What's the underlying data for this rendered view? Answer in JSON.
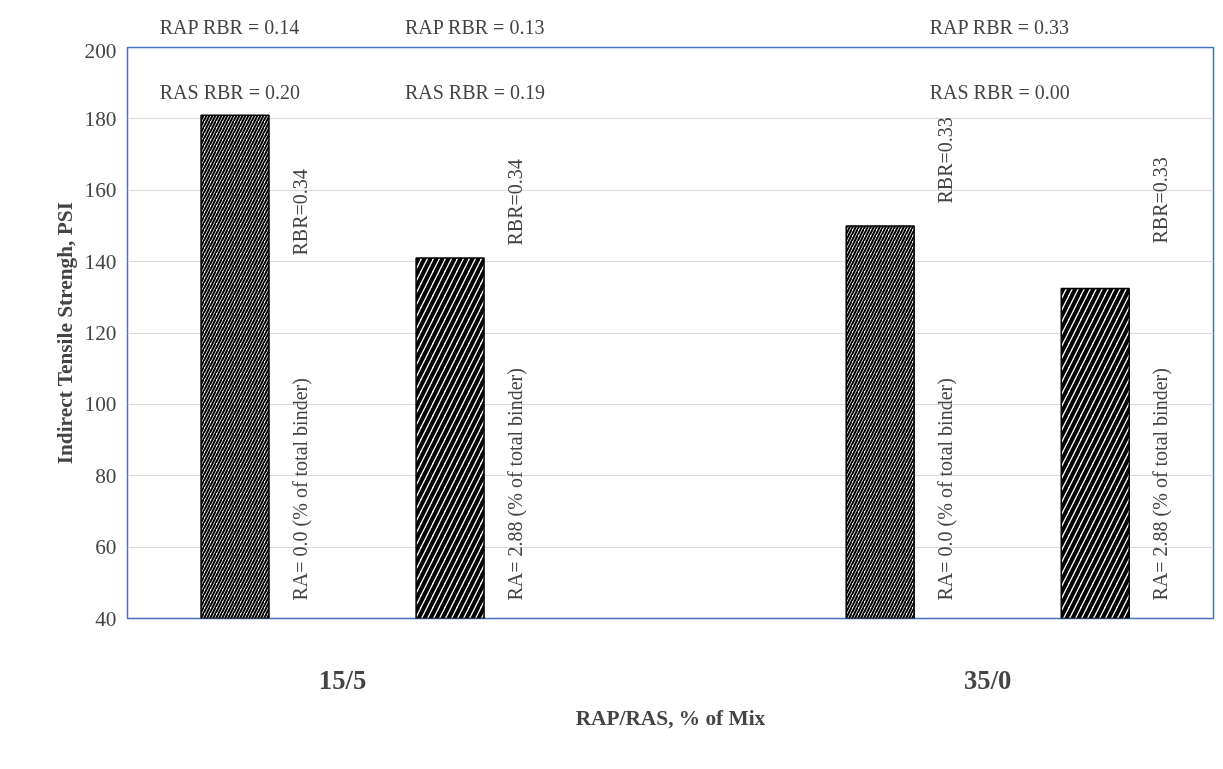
{
  "chart_data": {
    "type": "bar",
    "xlabel": "RAP/RAS, % of Mix",
    "ylabel": "Indirect Tensile Strengh, PSI",
    "categories": [
      null,
      null,
      null,
      null
    ],
    "values": [
      181,
      141,
      150,
      132.5
    ],
    "color": "#000000",
    "ylim": [
      40,
      200
    ],
    "yticks": [
      40,
      60,
      80,
      100,
      120,
      140,
      160,
      180,
      200
    ],
    "grid": "y",
    "tick_labels": "y",
    "annotations": [
      "RAP RBR = 0.14",
      "RAS RBR = 0.20",
      "RAP RBR = 0.13",
      "RAS RBR = 0.19",
      "RAP RBR = 0.33",
      "RAS RBR = 0.00",
      "RBR=0.34",
      "RBR=0.34",
      "RBR=0.33",
      "RBR=0.33",
      "RA= 0.0 (% of total binder)",
      "RA= 2.88 (% of total binder)",
      "RA= 0.0 (% of total binder)",
      "RA= 2.88 (% of total binder)",
      "15/5",
      "35/0"
    ]
  }
}
